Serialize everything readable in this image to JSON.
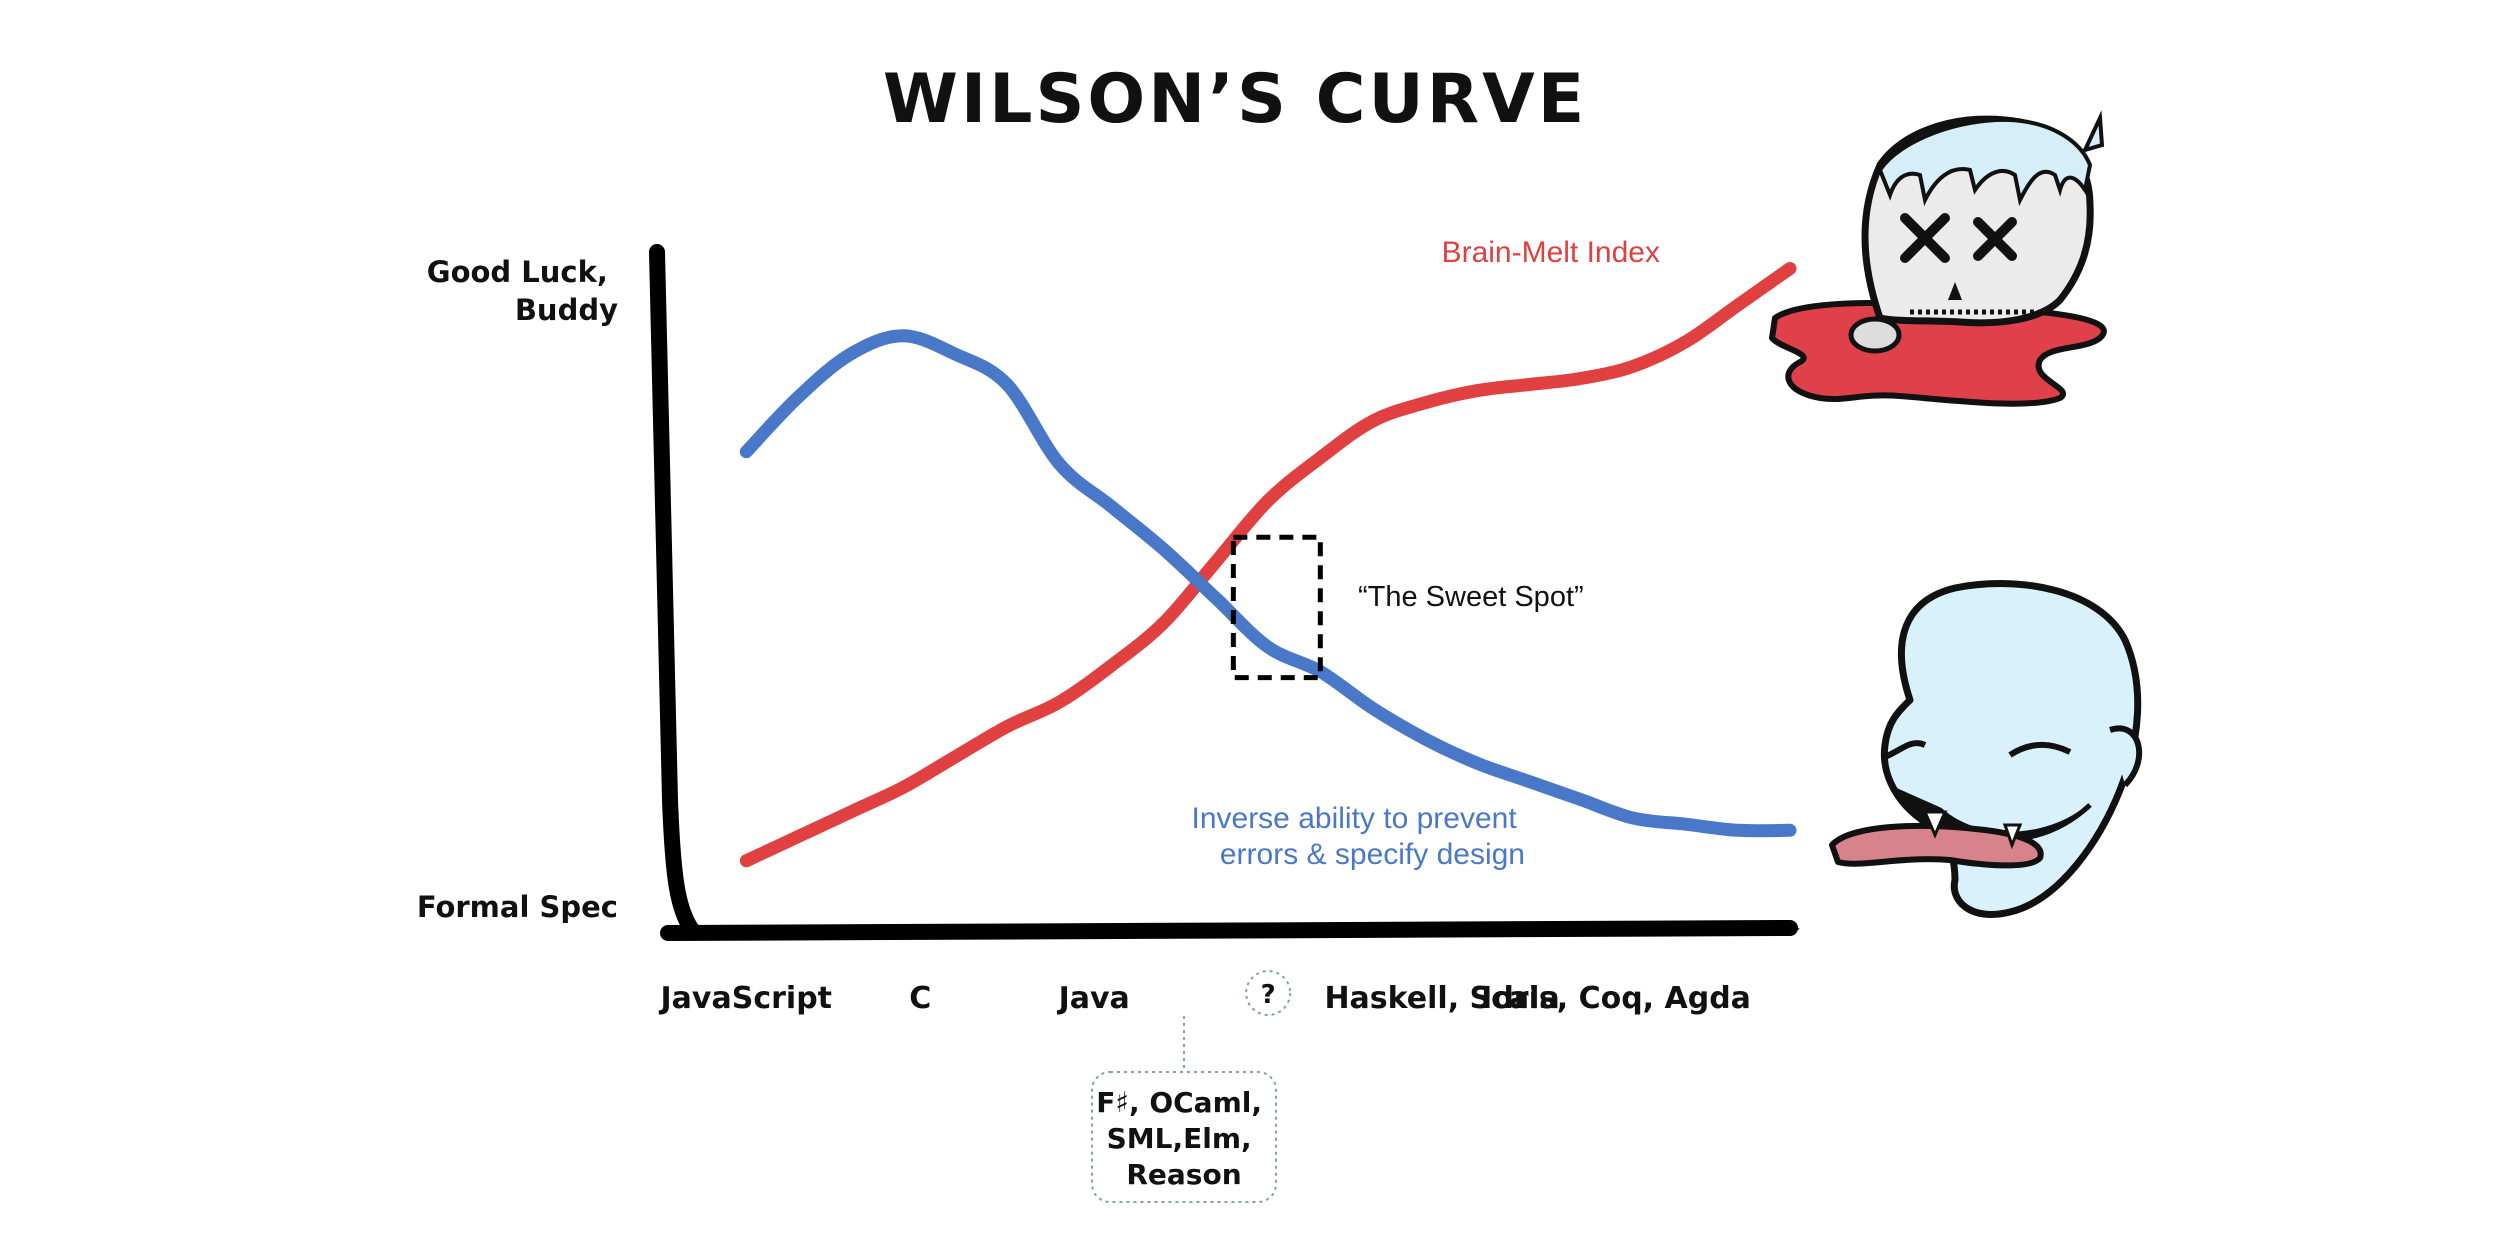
{
  "chart_data": {
    "type": "line",
    "title": "WILSON’S CURVE",
    "ylabel_top": [
      "Good Luck,",
      "Buddy"
    ],
    "ylabel_bottom": "Formal Spec",
    "categories": [
      "JavaScript",
      "C",
      "Java",
      "?",
      "Haskell, Scala",
      "Idris, Coq, Agda"
    ],
    "callout": {
      "anchor": "?",
      "lines": [
        "F♯, OCaml,",
        "SML,Elm,",
        "Reason"
      ]
    },
    "series": [
      {
        "name": "Brain-Melt Index",
        "color": "#e04040",
        "x": [
          0.0,
          0.3,
          0.6,
          0.9,
          1.2,
          1.5,
          1.8,
          2.1,
          2.4,
          2.7,
          3.0,
          3.3,
          3.6,
          3.9,
          4.2,
          4.5,
          4.8,
          5.1,
          5.4,
          5.7,
          6.0
        ],
        "values": [
          0.03,
          0.07,
          0.11,
          0.15,
          0.2,
          0.25,
          0.29,
          0.35,
          0.42,
          0.52,
          0.62,
          0.69,
          0.75,
          0.78,
          0.8,
          0.81,
          0.82,
          0.84,
          0.88,
          0.94,
          1.0
        ]
      },
      {
        "name": "Inverse ability to prevent errors & specify design",
        "label_lines": [
          "Inverse ability to prevent",
          "errors & specify design"
        ],
        "color": "#4a78c8",
        "x": [
          0.0,
          0.3,
          0.6,
          0.9,
          1.2,
          1.5,
          1.8,
          2.1,
          2.4,
          2.7,
          3.0,
          3.3,
          3.6,
          3.9,
          4.2,
          4.5,
          4.8,
          5.1,
          5.4,
          5.7,
          6.0
        ],
        "values": [
          0.7,
          0.79,
          0.86,
          0.89,
          0.86,
          0.81,
          0.68,
          0.61,
          0.54,
          0.46,
          0.38,
          0.34,
          0.28,
          0.23,
          0.19,
          0.16,
          0.13,
          0.1,
          0.09,
          0.08,
          0.08
        ]
      }
    ],
    "annotation": "“The Sweet Spot”",
    "sweet_spot": {
      "x": [
        2.8,
        3.3
      ],
      "y": [
        0.33,
        0.56
      ]
    },
    "xlim": [
      -0.45,
      6.0
    ],
    "ylim": [
      -0.08,
      1.05
    ],
    "grid": false,
    "legend": "inline labels"
  }
}
